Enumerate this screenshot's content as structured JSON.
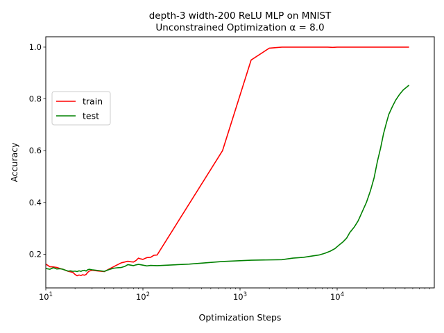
{
  "chart_data": {
    "type": "line",
    "title_line1": "depth-3 width-200 ReLU MLP on MNIST",
    "title_line2": "Unconstrained Optimization α = 8.0",
    "xlabel": "Optimization Steps",
    "ylabel": "Accuracy",
    "xscale": "log",
    "xlim": [
      10,
      100000
    ],
    "ylim": [
      0.07,
      1.04
    ],
    "x_tick_labels": [
      {
        "value": 10,
        "base": "10",
        "exp": "1"
      },
      {
        "value": 100,
        "base": "10",
        "exp": "2"
      },
      {
        "value": 1000,
        "base": "10",
        "exp": "3"
      },
      {
        "value": 10000,
        "base": "10",
        "exp": "4"
      }
    ],
    "y_ticks": [
      0.2,
      0.4,
      0.6,
      0.8,
      1.0
    ],
    "y_tick_labels": [
      "0.2",
      "0.4",
      "0.6",
      "0.8",
      "1.0"
    ],
    "grid": false,
    "legend_position": "center-left",
    "series": [
      {
        "name": "train",
        "color": "#ff0000",
        "points": [
          [
            10,
            0.162
          ],
          [
            11,
            0.152
          ],
          [
            12,
            0.151
          ],
          [
            13,
            0.149
          ],
          [
            14,
            0.145
          ],
          [
            15,
            0.142
          ],
          [
            16,
            0.138
          ],
          [
            17,
            0.134
          ],
          [
            18,
            0.132
          ],
          [
            19,
            0.13
          ],
          [
            20,
            0.122
          ],
          [
            21,
            0.117
          ],
          [
            22,
            0.12
          ],
          [
            23,
            0.118
          ],
          [
            24,
            0.121
          ],
          [
            25,
            0.119
          ],
          [
            26,
            0.122
          ],
          [
            27,
            0.13
          ],
          [
            28,
            0.135
          ],
          [
            30,
            0.138
          ],
          [
            35,
            0.135
          ],
          [
            40,
            0.133
          ],
          [
            45,
            0.143
          ],
          [
            50,
            0.152
          ],
          [
            55,
            0.16
          ],
          [
            60,
            0.167
          ],
          [
            65,
            0.17
          ],
          [
            70,
            0.173
          ],
          [
            75,
            0.171
          ],
          [
            80,
            0.17
          ],
          [
            85,
            0.176
          ],
          [
            90,
            0.185
          ],
          [
            95,
            0.182
          ],
          [
            100,
            0.18
          ],
          [
            105,
            0.184
          ],
          [
            110,
            0.187
          ],
          [
            120,
            0.188
          ],
          [
            130,
            0.196
          ],
          [
            140,
            0.197
          ],
          [
            660,
            0.6
          ],
          [
            1300,
            0.95
          ],
          [
            2000,
            0.996
          ],
          [
            2700,
            1.0
          ],
          [
            5000,
            1.0
          ],
          [
            8000,
            1.0
          ],
          [
            9000,
            0.999
          ],
          [
            10000,
            1.0
          ],
          [
            20000,
            1.0
          ],
          [
            55000,
            1.0
          ]
        ]
      },
      {
        "name": "test",
        "color": "#008000",
        "points": [
          [
            10,
            0.145
          ],
          [
            11,
            0.142
          ],
          [
            12,
            0.148
          ],
          [
            13,
            0.143
          ],
          [
            14,
            0.144
          ],
          [
            15,
            0.142
          ],
          [
            16,
            0.138
          ],
          [
            17,
            0.135
          ],
          [
            18,
            0.136
          ],
          [
            19,
            0.134
          ],
          [
            20,
            0.135
          ],
          [
            21,
            0.133
          ],
          [
            22,
            0.136
          ],
          [
            23,
            0.134
          ],
          [
            24,
            0.137
          ],
          [
            25,
            0.138
          ],
          [
            26,
            0.135
          ],
          [
            27,
            0.14
          ],
          [
            28,
            0.142
          ],
          [
            30,
            0.14
          ],
          [
            35,
            0.137
          ],
          [
            40,
            0.134
          ],
          [
            45,
            0.141
          ],
          [
            50,
            0.146
          ],
          [
            55,
            0.148
          ],
          [
            60,
            0.149
          ],
          [
            65,
            0.153
          ],
          [
            70,
            0.16
          ],
          [
            75,
            0.158
          ],
          [
            80,
            0.156
          ],
          [
            85,
            0.159
          ],
          [
            90,
            0.161
          ],
          [
            100,
            0.158
          ],
          [
            110,
            0.155
          ],
          [
            120,
            0.157
          ],
          [
            140,
            0.156
          ],
          [
            300,
            0.162
          ],
          [
            660,
            0.172
          ],
          [
            1300,
            0.177
          ],
          [
            2700,
            0.179
          ],
          [
            3500,
            0.185
          ],
          [
            4500,
            0.188
          ],
          [
            5500,
            0.193
          ],
          [
            6500,
            0.197
          ],
          [
            7500,
            0.204
          ],
          [
            8500,
            0.212
          ],
          [
            9500,
            0.222
          ],
          [
            10500,
            0.236
          ],
          [
            11500,
            0.248
          ],
          [
            12500,
            0.262
          ],
          [
            13500,
            0.284
          ],
          [
            15000,
            0.305
          ],
          [
            16500,
            0.33
          ],
          [
            18000,
            0.362
          ],
          [
            20000,
            0.4
          ],
          [
            22000,
            0.445
          ],
          [
            24000,
            0.495
          ],
          [
            26000,
            0.56
          ],
          [
            28000,
            0.61
          ],
          [
            30000,
            0.665
          ],
          [
            32000,
            0.705
          ],
          [
            34000,
            0.74
          ],
          [
            37000,
            0.77
          ],
          [
            40000,
            0.795
          ],
          [
            44000,
            0.818
          ],
          [
            48000,
            0.835
          ],
          [
            55000,
            0.853
          ]
        ]
      }
    ]
  }
}
